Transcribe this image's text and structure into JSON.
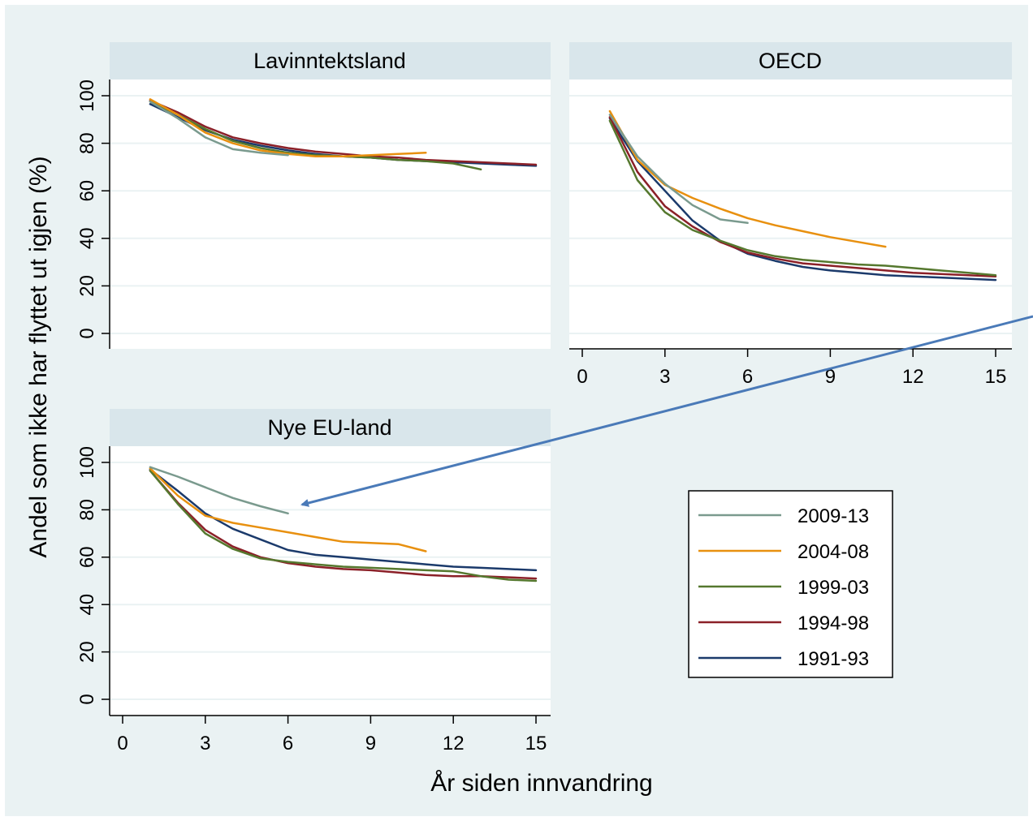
{
  "chart_data": {
    "type": "line",
    "ylabel": "Andel som ikke har flyttet ut igjen (%)",
    "xlabel": "År siden innvandring",
    "xlim": [
      0,
      15
    ],
    "ylim": [
      0,
      100
    ],
    "xticks": [
      "0",
      "3",
      "6",
      "9",
      "12",
      "15"
    ],
    "yticks": [
      "0",
      "20",
      "40",
      "60",
      "80",
      "100"
    ],
    "grid": true,
    "legend_position": "bottom-right",
    "legend": [
      "2009-13",
      "2004-08",
      "1999-03",
      "1994-98",
      "1991-93"
    ],
    "colors": {
      "2009-13": "#7a9a8e",
      "2004-08": "#e8900f",
      "1999-03": "#55782e",
      "1994-98": "#8b2028",
      "1991-93": "#1b3a6b",
      "arrow": "#4a7ab8",
      "strip": "#d9e6eb",
      "grid": "#eaf2f3"
    },
    "panels": [
      {
        "title": "Lavinntektsland",
        "series": [
          {
            "name": "1991-93",
            "x": [
              1,
              2,
              3,
              4,
              5,
              6,
              7,
              8,
              9,
              10,
              11,
              12,
              13,
              14,
              15
            ],
            "y": [
              96.5,
              91,
              85.5,
              81.5,
              79,
              77,
              75.5,
              74.5,
              74,
              73,
              72.5,
              72,
              71.5,
              71,
              70.5
            ]
          },
          {
            "name": "1994-98",
            "x": [
              1,
              2,
              3,
              4,
              5,
              6,
              7,
              8,
              9,
              10,
              11,
              12,
              13,
              14,
              15
            ],
            "y": [
              98,
              93,
              87,
              82.5,
              80,
              78,
              76.5,
              75.5,
              74.5,
              74,
              73,
              72.5,
              72,
              71.5,
              71
            ]
          },
          {
            "name": "1999-03",
            "x": [
              1,
              2,
              3,
              4,
              5,
              6,
              7,
              8,
              9,
              10,
              11,
              12,
              13
            ],
            "y": [
              97.5,
              92,
              86,
              81,
              78,
              76,
              75,
              74.5,
              74,
              73,
              72.5,
              71.5,
              69
            ]
          },
          {
            "name": "2004-08",
            "x": [
              1,
              2,
              3,
              4,
              5,
              6,
              7,
              8,
              9,
              10,
              11
            ],
            "y": [
              98.5,
              92,
              84.5,
              80,
              77,
              75.5,
              74.5,
              74.5,
              75,
              75.5,
              76
            ]
          },
          {
            "name": "2009-13",
            "x": [
              1,
              2,
              3,
              4,
              5,
              6
            ],
            "y": [
              97.5,
              90.5,
              82.5,
              77.5,
              76,
              75
            ]
          }
        ]
      },
      {
        "title": "OECD",
        "series": [
          {
            "name": "1991-93",
            "x": [
              1,
              2,
              3,
              4,
              5,
              6,
              7,
              8,
              9,
              10,
              11,
              12,
              13,
              14,
              15
            ],
            "y": [
              90.5,
              72.5,
              60,
              47.5,
              39,
              33.5,
              30.5,
              28,
              26.5,
              25.5,
              24.5,
              24,
              23.5,
              23,
              22.5
            ]
          },
          {
            "name": "1994-98",
            "x": [
              1,
              2,
              3,
              4,
              5,
              6,
              7,
              8,
              9,
              10,
              11,
              12,
              13,
              14,
              15
            ],
            "y": [
              91,
              68,
              53.5,
              45,
              38.5,
              34,
              31.5,
              29.5,
              28.5,
              27.5,
              26.5,
              25.5,
              25,
              24.5,
              24
            ]
          },
          {
            "name": "1999-03",
            "x": [
              1,
              2,
              3,
              4,
              5,
              6,
              7,
              8,
              9,
              10,
              11,
              12,
              13,
              14,
              15
            ],
            "y": [
              89.5,
              64.5,
              51,
              43.5,
              39,
              35,
              32.5,
              31,
              30,
              29,
              28.5,
              27.5,
              26.5,
              25.5,
              24.5
            ]
          },
          {
            "name": "2004-08",
            "x": [
              1,
              2,
              3,
              4,
              5,
              6,
              7,
              8,
              9,
              10,
              11
            ],
            "y": [
              93.5,
              73,
              62.5,
              57,
              52.5,
              48.5,
              45.5,
              43,
              40.5,
              38.5,
              36.5
            ]
          },
          {
            "name": "2009-13",
            "x": [
              1,
              2,
              3,
              4,
              5,
              6
            ],
            "y": [
              92,
              74.5,
              63,
              54,
              48,
              46.5
            ]
          }
        ]
      },
      {
        "title": "Nye EU-land",
        "series": [
          {
            "name": "1991-93",
            "x": [
              1,
              2,
              3,
              4,
              5,
              6,
              7,
              8,
              9,
              10,
              11,
              12,
              13,
              14,
              15
            ],
            "y": [
              97,
              88,
              78.5,
              72,
              67.5,
              63,
              61,
              60,
              59,
              58,
              57,
              56,
              55.5,
              55,
              54.5
            ]
          },
          {
            "name": "1994-98",
            "x": [
              1,
              2,
              3,
              4,
              5,
              6,
              7,
              8,
              9,
              10,
              11,
              12,
              13,
              14,
              15
            ],
            "y": [
              96.5,
              83,
              71.5,
              64.5,
              60,
              57.5,
              56,
              55,
              54.5,
              53.5,
              52.5,
              52,
              52,
              51.5,
              51
            ]
          },
          {
            "name": "1999-03",
            "x": [
              1,
              2,
              3,
              4,
              5,
              6,
              7,
              8,
              9,
              10,
              11,
              12,
              13,
              14,
              15
            ],
            "y": [
              96.5,
              82.5,
              70,
              63.5,
              59.5,
              58,
              57,
              56,
              55.5,
              55,
              54.5,
              54,
              52,
              50.5,
              50
            ]
          },
          {
            "name": "2004-08",
            "x": [
              1,
              2,
              3,
              4,
              5,
              6,
              7,
              8,
              9,
              10,
              11
            ],
            "y": [
              97.5,
              86,
              77.5,
              74.5,
              72.5,
              70.5,
              68.5,
              66.5,
              66,
              65.5,
              62.5
            ]
          },
          {
            "name": "2009-13",
            "x": [
              1,
              2,
              3,
              4,
              5,
              6
            ],
            "y": [
              98,
              94,
              89.5,
              85,
              81.5,
              78.5
            ]
          }
        ]
      }
    ]
  }
}
